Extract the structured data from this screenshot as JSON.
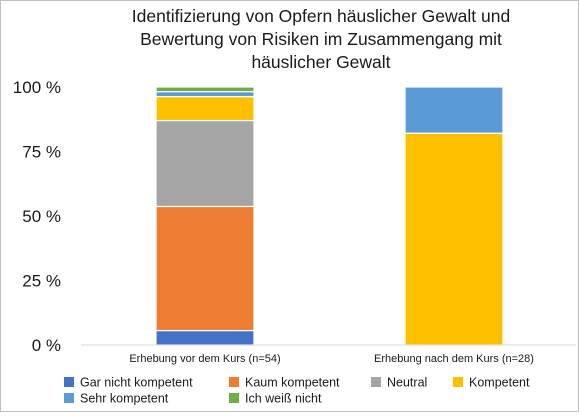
{
  "chart_data": {
    "type": "bar",
    "stacked": true,
    "title_lines": [
      "Identifizierung von Opfern häuslicher Gewalt und",
      "Bewertung von Risiken im Zusammengang mit",
      "häuslicher Gewalt"
    ],
    "y_ticks": [
      "100 %",
      "75 %",
      "50 %",
      "25 %",
      "0 %"
    ],
    "ylim": [
      0,
      100
    ],
    "categories": [
      "Erhebung vor dem Kurs (n=54)",
      "Erhebung nach dem Kurs (n=28)"
    ],
    "series": [
      {
        "name": "Gar nicht kompetent",
        "color": "#4472C4",
        "values": [
          5.6,
          0
        ]
      },
      {
        "name": "Kaum kompetent",
        "color": "#ED7D31",
        "values": [
          48.1,
          0
        ]
      },
      {
        "name": "Neutral",
        "color": "#A5A5A5",
        "values": [
          33.3,
          0
        ]
      },
      {
        "name": "Kompetent",
        "color": "#FFC000",
        "values": [
          9.3,
          82.1
        ]
      },
      {
        "name": "Sehr kompetent",
        "color": "#5B9BD5",
        "values": [
          1.9,
          17.9
        ]
      },
      {
        "name": "Ich weiß nicht",
        "color": "#70AD47",
        "values": [
          1.8,
          0
        ]
      }
    ],
    "legend_position": "bottom",
    "grid": false
  }
}
